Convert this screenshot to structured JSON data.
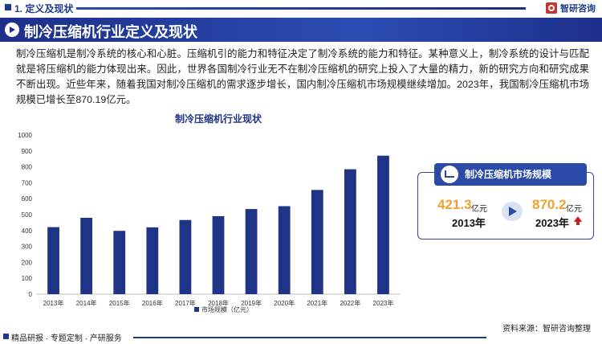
{
  "header": {
    "section": "1. 定义及现状",
    "brand": "智研咨询"
  },
  "banner": {
    "title": "制冷压缩机行业定义及现状"
  },
  "intro": {
    "text": "制冷压缩机是制冷系统的核心和心脏。压缩机引的能力和特征决定了制冷系统的能力和特征。某种意义上，制冷系统的设计与匹配就是将压缩机的能力体现出来。因此，世界各国制冷行业无不在制冷压缩机的研究上投入了大量的精力，新的研究方向和研究成果不断出现。近些年来，随着我国对制冷压缩机的需求逐步增长，国内制冷压缩机市场规模继续增加。2023年，我国制冷压缩机市场规模已增长至870.19亿元。"
  },
  "chart_data": {
    "type": "bar",
    "title": "制冷压缩机行业现状",
    "categories": [
      "2013年",
      "2014年",
      "2015年",
      "2016年",
      "2017年",
      "2018年",
      "2019年",
      "2020年",
      "2021年",
      "2022年",
      "2023年"
    ],
    "series": [
      {
        "name": "市场规模（亿元）",
        "values": [
          421.3,
          480,
          398,
          420,
          466,
          490,
          535,
          553,
          655,
          785,
          870.2
        ]
      }
    ],
    "ylim": [
      0,
      1000
    ],
    "yticks": [
      0,
      100,
      200,
      300,
      400,
      500,
      600,
      700,
      800,
      900,
      1000
    ],
    "grid": false,
    "legend": "bottom",
    "colors": {
      "bar": "#1f3487"
    }
  },
  "card": {
    "title": "制冷压缩机市场规模",
    "value_start": "421.3",
    "unit_start": "亿元",
    "year_start": "2013年",
    "value_end": "870.2",
    "unit_end": "亿元",
    "year_end": "2023年"
  },
  "footer": {
    "left": "精品研报 · 专题定制 · 产研服务",
    "right": "资料来源：智研咨询整理"
  }
}
